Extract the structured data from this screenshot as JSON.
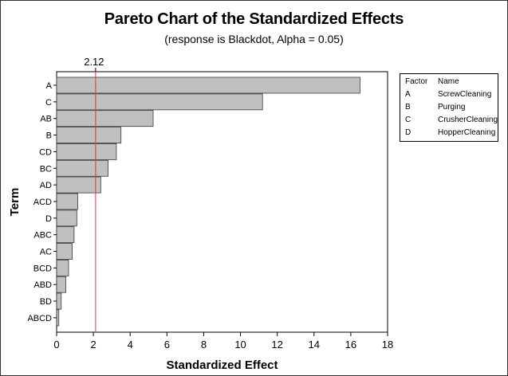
{
  "chart": {
    "title": "Pareto Chart of the Standardized Effects",
    "subtitle": "(response is Blackdot, Alpha = 0.05)"
  },
  "legend": {
    "header_factor": "Factor",
    "header_name": "Name",
    "rows": [
      {
        "factor": "A",
        "name": "ScrewCleaning"
      },
      {
        "factor": "B",
        "name": "Purging"
      },
      {
        "factor": "C",
        "name": "CrusherCleaning"
      },
      {
        "factor": "D",
        "name": "HopperCleaning"
      }
    ]
  },
  "colors": {
    "bar_fill": "#c0c0c0",
    "bar_stroke": "#3a3a3a",
    "reference_line": "#e8323c",
    "axis": "#000000"
  },
  "chart_data": {
    "type": "bar",
    "orientation": "horizontal",
    "title": "Pareto Chart of the Standardized Effects",
    "subtitle": "(response is Blackdot, Alpha = 0.05)",
    "xlabel": "Standardized Effect",
    "ylabel": "Term",
    "xlim": [
      0,
      18
    ],
    "xticks": [
      0,
      2,
      4,
      6,
      8,
      10,
      12,
      14,
      16,
      18
    ],
    "categories": [
      "A",
      "C",
      "AB",
      "B",
      "CD",
      "BC",
      "AD",
      "ACD",
      "D",
      "ABC",
      "AC",
      "BCD",
      "ABD",
      "BD",
      "ABCD"
    ],
    "values": [
      16.5,
      11.2,
      5.25,
      3.5,
      3.25,
      2.8,
      2.4,
      1.15,
      1.1,
      0.95,
      0.85,
      0.65,
      0.5,
      0.25,
      0.12
    ],
    "reference_line": {
      "value": 2.12,
      "label": "2.12"
    },
    "grid": false,
    "legend_position": "right"
  }
}
